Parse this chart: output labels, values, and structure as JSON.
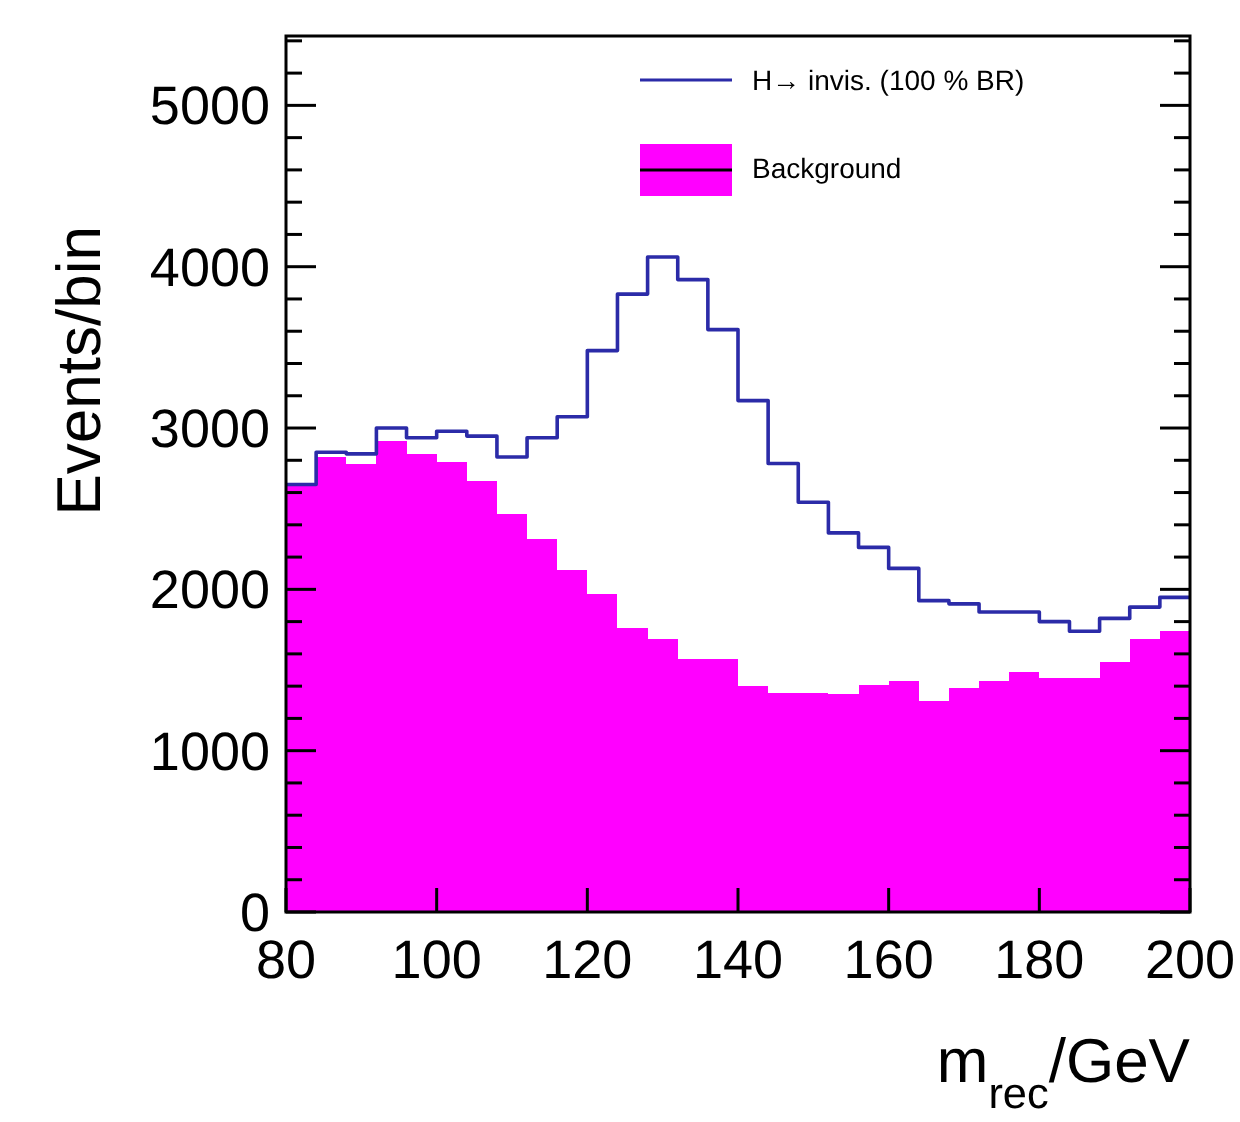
{
  "chart_data": {
    "type": "histogram",
    "xlabel": "m$_{rec}$/GeV",
    "ylabel": "Events/bin",
    "bins": [
      80,
      84,
      88,
      92,
      96,
      100,
      104,
      108,
      112,
      116,
      120,
      124,
      128,
      132,
      136,
      140,
      144,
      148,
      152,
      156,
      160,
      164,
      168,
      172,
      176,
      180,
      184,
      188,
      192,
      196,
      200
    ],
    "series": [
      {
        "name": "H→ invis. (100 % BR)",
        "type": "step",
        "color": "#2b2ba8",
        "x": [
          80,
          84,
          88,
          92,
          96,
          100,
          104,
          108,
          112,
          116,
          120,
          124,
          128,
          132,
          136,
          140,
          144,
          148,
          152,
          156,
          160,
          164,
          168,
          172,
          176,
          180,
          184,
          188,
          192,
          196,
          200
        ],
        "values": [
          2650,
          2850,
          2840,
          3000,
          2940,
          2980,
          2950,
          2820,
          2940,
          3070,
          3480,
          3830,
          4060,
          3920,
          3610,
          3170,
          2780,
          2540,
          2350,
          2260,
          2130,
          1930,
          1910,
          1860,
          1860,
          1800,
          1740,
          1820,
          1890,
          1950,
          1950
        ]
      },
      {
        "name": "Background",
        "color": "#ff00ff",
        "values": [
          2640,
          2820,
          2780,
          2920,
          2840,
          2790,
          2670,
          2470,
          2310,
          2120,
          1970,
          1760,
          1690,
          1570,
          1570,
          1400,
          1360,
          1360,
          1350,
          1410,
          1430,
          1310,
          1390,
          1430,
          1490,
          1450,
          1450,
          1550,
          1690,
          1740
        ]
      }
    ],
    "xlim": [
      80,
      200
    ],
    "xticks": [
      80,
      100,
      120,
      140,
      160,
      180,
      200
    ],
    "ylim": [
      0,
      5430
    ],
    "yticks": [
      0,
      {
        "value": 200,
        "label": null
      },
      {
        "value": 400,
        "label": null
      },
      {
        "value": 600,
        "label": null
      },
      {
        "value": 800,
        "label": null
      },
      1000,
      {
        "value": 1200,
        "label": null
      },
      {
        "value": 1400,
        "label": null
      },
      {
        "value": 1600,
        "label": null
      },
      {
        "value": 1800,
        "label": null
      },
      2000,
      {
        "value": 2200,
        "label": null
      },
      {
        "value": 2400,
        "label": null
      },
      {
        "value": 2600,
        "label": null
      },
      {
        "value": 2800,
        "label": null
      },
      3000,
      {
        "value": 3200,
        "label": null
      },
      {
        "value": 3400,
        "label": null
      },
      {
        "value": 3600,
        "label": null
      },
      {
        "value": 3800,
        "label": null
      },
      4000,
      {
        "value": 4200,
        "label": null
      },
      {
        "value": 4400,
        "label": null
      },
      {
        "value": 4600,
        "label": null
      },
      {
        "value": 4800,
        "label": null
      },
      5000,
      {
        "value": 5200,
        "label": null
      },
      {
        "value": 5400,
        "label": null
      }
    ],
    "legend": "top right",
    "grid": false
  }
}
